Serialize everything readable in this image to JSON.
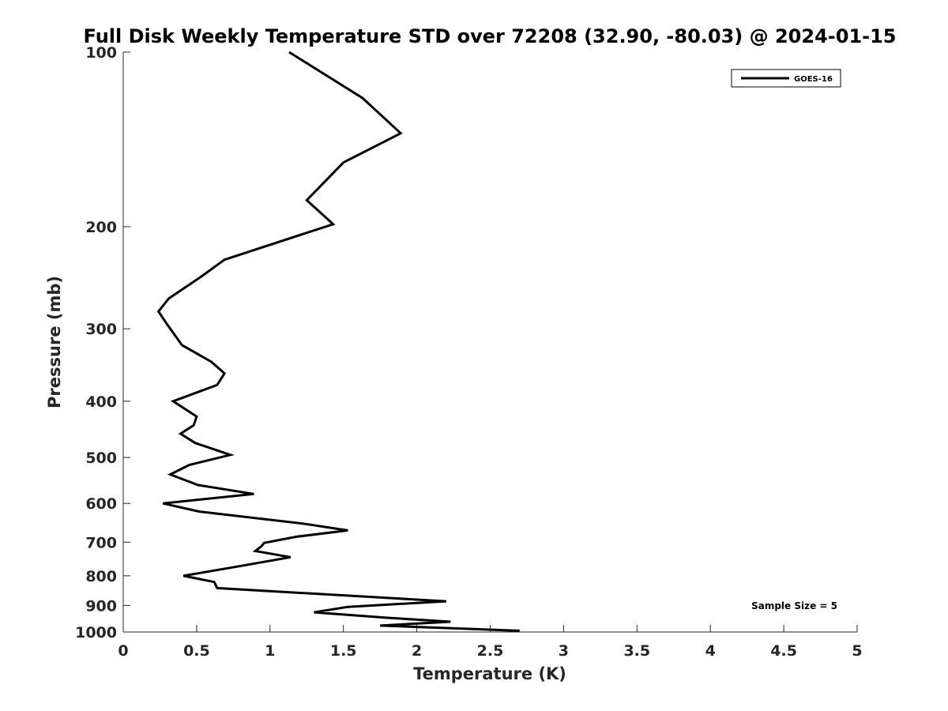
{
  "chart_data": {
    "type": "line",
    "title": "Full Disk Weekly Temperature STD over 72208 (32.90, -80.03) @ 2024-01-15",
    "xlabel": "Temperature (K)",
    "ylabel": "Pressure (mb)",
    "xlim": [
      0,
      5
    ],
    "ylim": [
      100,
      1000
    ],
    "y_scale": "log",
    "y_reversed": true,
    "x_ticks": [
      0,
      0.5,
      1,
      1.5,
      2,
      2.5,
      3,
      3.5,
      4,
      4.5,
      5
    ],
    "x_tick_labels": [
      "0",
      "0.5",
      "1",
      "1.5",
      "2",
      "2.5",
      "3",
      "3.5",
      "4",
      "4.5",
      "5"
    ],
    "y_ticks": [
      100,
      200,
      300,
      400,
      500,
      600,
      700,
      800,
      900,
      1000
    ],
    "y_tick_labels": [
      "100",
      "200",
      "300",
      "400",
      "500",
      "600",
      "700",
      "800",
      "900",
      "1000"
    ],
    "grid": false,
    "legend_position": "top-right",
    "series": [
      {
        "name": "GOES-16",
        "color": "#000000",
        "x": [
          1.13,
          1.63,
          1.89,
          1.5,
          1.25,
          1.43,
          0.69,
          0.54,
          0.31,
          0.24,
          0.3,
          0.4,
          0.6,
          0.69,
          0.64,
          0.34,
          0.5,
          0.48,
          0.39,
          0.49,
          0.73,
          0.45,
          0.32,
          0.51,
          0.89,
          0.27,
          0.52,
          1.22,
          1.53,
          1.18,
          0.96,
          0.94,
          0.9,
          1.14,
          0.73,
          0.41,
          0.62,
          0.64,
          2.2,
          1.53,
          1.3,
          1.8,
          2.23,
          1.75,
          2.7
        ],
        "y": [
          100,
          120,
          138,
          155,
          180,
          198,
          228,
          243,
          266,
          280,
          295,
          320,
          342,
          358,
          375,
          400,
          425,
          440,
          455,
          472,
          495,
          515,
          535,
          558,
          578,
          600,
          620,
          650,
          668,
          685,
          702,
          712,
          725,
          743,
          775,
          800,
          820,
          840,
          885,
          905,
          925,
          945,
          960,
          975,
          995
        ]
      }
    ],
    "annotation": "Sample Size = 5"
  }
}
